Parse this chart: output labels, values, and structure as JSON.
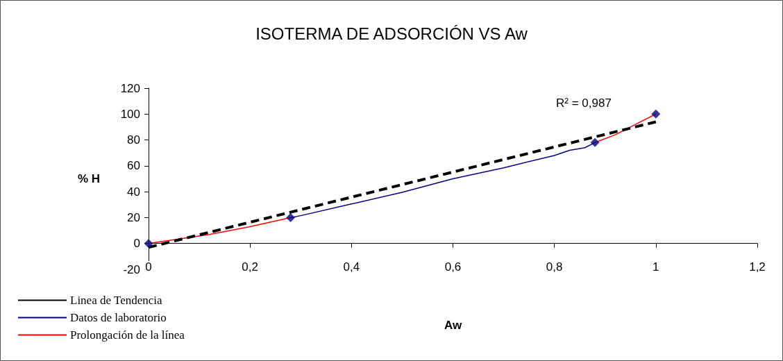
{
  "chart_data": {
    "type": "line",
    "title": "ISOTERMA DE ADSORCIÓN VS Aw",
    "xlabel": "Aw",
    "ylabel": "% H",
    "xlim": [
      0,
      1.2
    ],
    "xticks": [
      0,
      {
        "value": 0.2,
        "label": "0,2"
      },
      {
        "value": 0.4,
        "label": "0,4"
      },
      {
        "value": 0.6,
        "label": "0,6"
      },
      {
        "value": 0.8,
        "label": "0,8"
      },
      1,
      {
        "value": 1.2,
        "label": "1,2"
      }
    ],
    "ylim": [
      -20,
      120
    ],
    "yticks": [
      -20,
      0,
      20,
      40,
      60,
      80,
      100,
      120
    ],
    "legend": "bottom left",
    "annotations": [
      "R² = 0,987"
    ],
    "series": [
      {
        "name": "Linea de Tendencia",
        "color": "#000000",
        "line_style": "dashed",
        "marker": "none",
        "x": [
          0,
          1
        ],
        "values": [
          -3,
          94
        ]
      },
      {
        "name": "Datos de laboratorio",
        "color": "#000080",
        "line_style": "solid",
        "marker": "none",
        "x": [
          0.28,
          0.3,
          0.4,
          0.5,
          0.6,
          0.7,
          0.8,
          0.83,
          0.86,
          0.88
        ],
        "values": [
          20,
          21.5,
          30.5,
          39.5,
          50,
          58.5,
          68,
          72,
          74,
          78
        ]
      },
      {
        "name": "Prolongación de la línea",
        "color": "#ff0000",
        "line_style": "solid",
        "marker": "none",
        "x": [
          0,
          0.06,
          0.12,
          0.2,
          0.28,
          0.5,
          0.88,
          0.92,
          0.96,
          1
        ],
        "values": [
          0,
          3.5,
          7,
          13,
          20,
          null,
          78,
          84,
          92,
          100
        ]
      },
      {
        "type": "scatter",
        "color": "#000080",
        "marker": "diamond",
        "x": [
          0,
          0.28,
          0.88,
          1
        ],
        "values": [
          0,
          20,
          78,
          100
        ]
      }
    ]
  }
}
